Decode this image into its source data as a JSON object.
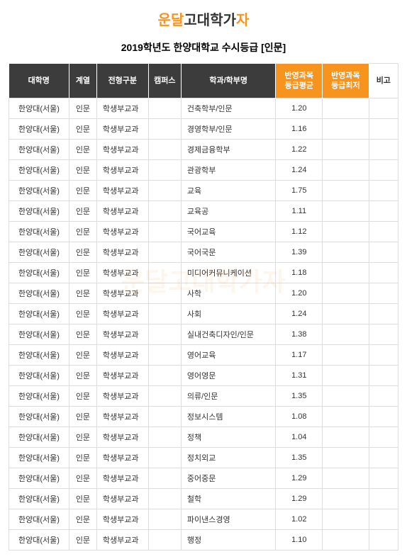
{
  "logo": {
    "part1": "운달",
    "part2": "고대학가",
    "part3": "자"
  },
  "title": "2019학년도 한양대학교 수시등급 [인문]",
  "watermark": "운달고대학가자",
  "table": {
    "headers": {
      "univ": "대학명",
      "track": "계열",
      "type": "전형구분",
      "campus": "캠퍼스",
      "dept": "학과/학부명",
      "avg": "반영과목\n등급평균",
      "min": "반영과목\n등급최저",
      "note": "비고"
    },
    "header_styles": {
      "dark_bg": "#3c3c3c",
      "orange_bg": "#f7941e",
      "white_bg": "#ffffff",
      "header_text": "#ffffff",
      "note_text": "#333333"
    },
    "cell_styles": {
      "border": "#dddddd",
      "text": "#333333",
      "bg": "#ffffff"
    },
    "rows": [
      {
        "univ": "한양대(서울)",
        "track": "인문",
        "type": "학생부교과",
        "campus": "",
        "dept": "건축학부/인문",
        "avg": "1.20",
        "min": "",
        "note": ""
      },
      {
        "univ": "한양대(서울)",
        "track": "인문",
        "type": "학생부교과",
        "campus": "",
        "dept": "경영학부/인문",
        "avg": "1.16",
        "min": "",
        "note": ""
      },
      {
        "univ": "한양대(서울)",
        "track": "인문",
        "type": "학생부교과",
        "campus": "",
        "dept": "경제금융학부",
        "avg": "1.22",
        "min": "",
        "note": ""
      },
      {
        "univ": "한양대(서울)",
        "track": "인문",
        "type": "학생부교과",
        "campus": "",
        "dept": "관광학부",
        "avg": "1.24",
        "min": "",
        "note": ""
      },
      {
        "univ": "한양대(서울)",
        "track": "인문",
        "type": "학생부교과",
        "campus": "",
        "dept": "교육",
        "avg": "1.75",
        "min": "",
        "note": ""
      },
      {
        "univ": "한양대(서울)",
        "track": "인문",
        "type": "학생부교과",
        "campus": "",
        "dept": "교육공",
        "avg": "1.11",
        "min": "",
        "note": ""
      },
      {
        "univ": "한양대(서울)",
        "track": "인문",
        "type": "학생부교과",
        "campus": "",
        "dept": "국어교육",
        "avg": "1.12",
        "min": "",
        "note": ""
      },
      {
        "univ": "한양대(서울)",
        "track": "인문",
        "type": "학생부교과",
        "campus": "",
        "dept": "국어국문",
        "avg": "1.39",
        "min": "",
        "note": ""
      },
      {
        "univ": "한양대(서울)",
        "track": "인문",
        "type": "학생부교과",
        "campus": "",
        "dept": "미디어커뮤니케이션",
        "avg": "1.18",
        "min": "",
        "note": ""
      },
      {
        "univ": "한양대(서울)",
        "track": "인문",
        "type": "학생부교과",
        "campus": "",
        "dept": "사학",
        "avg": "1.20",
        "min": "",
        "note": ""
      },
      {
        "univ": "한양대(서울)",
        "track": "인문",
        "type": "학생부교과",
        "campus": "",
        "dept": "사회",
        "avg": "1.24",
        "min": "",
        "note": ""
      },
      {
        "univ": "한양대(서울)",
        "track": "인문",
        "type": "학생부교과",
        "campus": "",
        "dept": "실내건축디자인/인문",
        "avg": "1.38",
        "min": "",
        "note": ""
      },
      {
        "univ": "한양대(서울)",
        "track": "인문",
        "type": "학생부교과",
        "campus": "",
        "dept": "영어교육",
        "avg": "1.17",
        "min": "",
        "note": ""
      },
      {
        "univ": "한양대(서울)",
        "track": "인문",
        "type": "학생부교과",
        "campus": "",
        "dept": "영어영문",
        "avg": "1.31",
        "min": "",
        "note": ""
      },
      {
        "univ": "한양대(서울)",
        "track": "인문",
        "type": "학생부교과",
        "campus": "",
        "dept": "의류/인문",
        "avg": "1.35",
        "min": "",
        "note": ""
      },
      {
        "univ": "한양대(서울)",
        "track": "인문",
        "type": "학생부교과",
        "campus": "",
        "dept": "정보시스템",
        "avg": "1.08",
        "min": "",
        "note": ""
      },
      {
        "univ": "한양대(서울)",
        "track": "인문",
        "type": "학생부교과",
        "campus": "",
        "dept": "정책",
        "avg": "1.04",
        "min": "",
        "note": ""
      },
      {
        "univ": "한양대(서울)",
        "track": "인문",
        "type": "학생부교과",
        "campus": "",
        "dept": "정치외교",
        "avg": "1.35",
        "min": "",
        "note": ""
      },
      {
        "univ": "한양대(서울)",
        "track": "인문",
        "type": "학생부교과",
        "campus": "",
        "dept": "중어중문",
        "avg": "1.29",
        "min": "",
        "note": ""
      },
      {
        "univ": "한양대(서울)",
        "track": "인문",
        "type": "학생부교과",
        "campus": "",
        "dept": "철학",
        "avg": "1.29",
        "min": "",
        "note": ""
      },
      {
        "univ": "한양대(서울)",
        "track": "인문",
        "type": "학생부교과",
        "campus": "",
        "dept": "파이낸스경영",
        "avg": "1.02",
        "min": "",
        "note": ""
      },
      {
        "univ": "한양대(서울)",
        "track": "인문",
        "type": "학생부교과",
        "campus": "",
        "dept": "행정",
        "avg": "1.10",
        "min": "",
        "note": ""
      }
    ]
  }
}
